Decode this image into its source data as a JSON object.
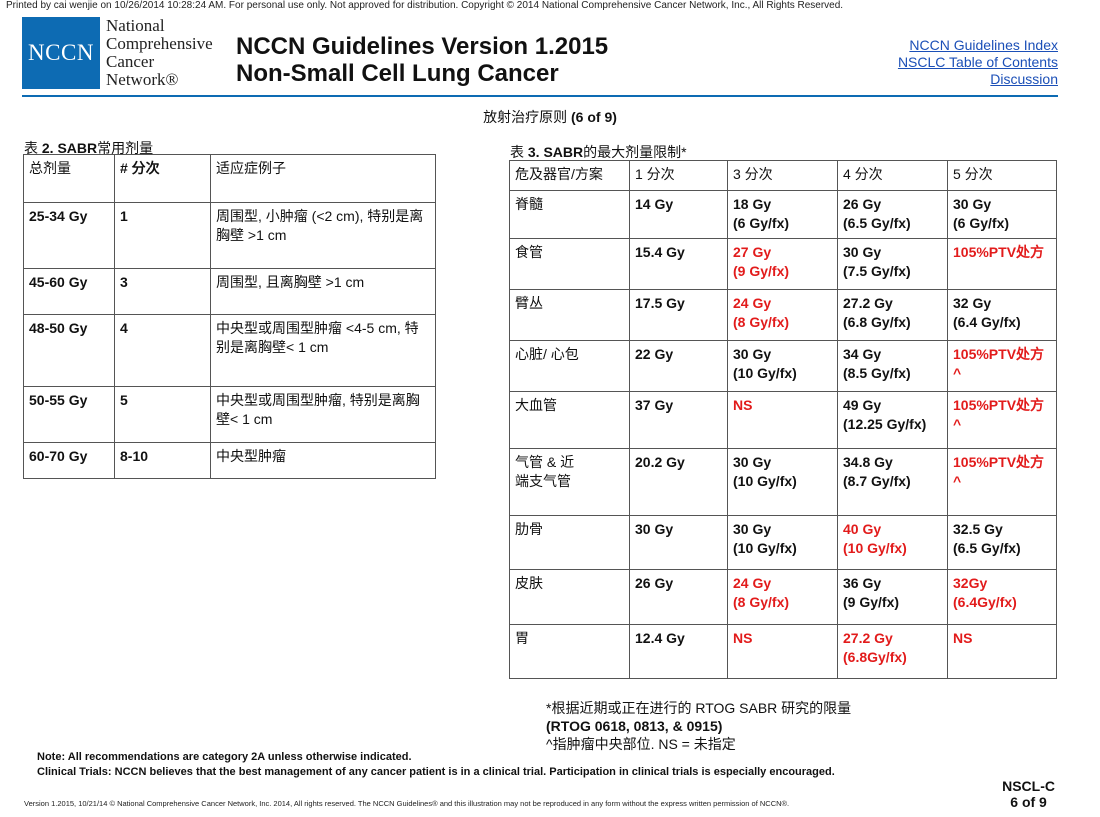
{
  "print_line": "Printed by cai wenjie on 10/26/2014 10:28:24 AM. For personal use only. Not approved for distribution. Copyright © 2014 National Comprehensive Cancer Network, Inc., All Rights Reserved.",
  "logo": {
    "abbr": "NCCN",
    "lines": [
      "National",
      "Comprehensive",
      "Cancer",
      "Network®"
    ]
  },
  "header": {
    "title_line1": "NCCN Guidelines Version 1.2015",
    "title_line2": "Non-Small Cell Lung Cancer"
  },
  "links": {
    "index": "NCCN Guidelines Index",
    "toc": "NSCLC Table of Contents",
    "discussion": "Discussion"
  },
  "subtitle": {
    "text": "放射治疗原则",
    "page": "(6 of 9)"
  },
  "table2": {
    "caption_prefix": "表",
    "caption_bold": "2. SABR",
    "caption_suffix": "常用剂量",
    "headers": [
      "总剂量",
      "# 分次",
      "适应症例子"
    ],
    "rows": [
      [
        "25-34 Gy",
        "1",
        "周围型, 小肿瘤 (<2 cm), 特别是离胸壁 >1 cm"
      ],
      [
        "45-60 Gy",
        "3",
        "周围型, 且离胸壁 >1 cm"
      ],
      [
        "48-50 Gy",
        "4",
        "中央型或周围型肿瘤 <4-5 cm, 特别是离胸壁< 1 cm"
      ],
      [
        "50-55 Gy",
        "5",
        "中央型或周围型肿瘤, 特别是离胸壁< 1 cm"
      ],
      [
        "60-70 Gy",
        "8-10",
        "中央型肿瘤"
      ]
    ]
  },
  "table3": {
    "caption_prefix": "表",
    "caption_bold": "3. SABR",
    "caption_suffix": "的最大剂量限制*",
    "headers": [
      "危及器官/方案",
      "1 分次",
      "3 分次",
      "4 分次",
      "5 分次"
    ],
    "rows": [
      {
        "organ": "脊髓",
        "c1": "14 Gy",
        "c3": "18 Gy\n(6 Gy/fx)",
        "c4": "26 Gy\n(6.5 Gy/fx)",
        "c5": "30 Gy\n(6 Gy/fx)",
        "red": []
      },
      {
        "organ": "食管",
        "c1": "15.4 Gy",
        "c3": "27 Gy\n(9 Gy/fx)",
        "c4": "30 Gy\n(7.5 Gy/fx)",
        "c5": "105%PTV处方",
        "red": [
          "c3",
          "c5"
        ]
      },
      {
        "organ": "臂丛",
        "c1": "17.5 Gy",
        "c3": "24 Gy\n(8 Gy/fx)",
        "c4": "27.2 Gy\n(6.8 Gy/fx)",
        "c5": "32 Gy\n(6.4 Gy/fx)",
        "red": [
          "c3"
        ]
      },
      {
        "organ": "心脏/ 心包",
        "c1": "22 Gy",
        "c3": "30 Gy\n(10 Gy/fx)",
        "c4": "34 Gy\n(8.5 Gy/fx)",
        "c5": "105%PTV处方\n^",
        "red": [
          "c5"
        ]
      },
      {
        "organ": "大血管",
        "c1": "37 Gy",
        "c3": "NS",
        "c4": "49 Gy\n(12.25 Gy/fx)",
        "c5": "105%PTV处方\n^",
        "red": [
          "c3",
          "c5"
        ]
      },
      {
        "organ": "气管 & 近\n端支气管",
        "c1": "20.2 Gy",
        "c3": "30 Gy\n(10 Gy/fx)",
        "c4": "34.8 Gy\n(8.7 Gy/fx)",
        "c5": "105%PTV处方\n^",
        "red": [
          "c5"
        ]
      },
      {
        "organ": "肋骨",
        "c1": "30 Gy",
        "c3": "30 Gy\n(10 Gy/fx)",
        "c4": "40 Gy\n(10 Gy/fx)",
        "c5": "32.5 Gy\n(6.5 Gy/fx)",
        "red": [
          "c4"
        ]
      },
      {
        "organ": "皮肤",
        "c1": "26 Gy",
        "c3": "24 Gy\n(8 Gy/fx)",
        "c4": "36 Gy\n(9 Gy/fx)",
        "c5": "32Gy\n(6.4Gy/fx)",
        "red": [
          "c3",
          "c5"
        ]
      },
      {
        "organ": "胃",
        "c1": "12.4 Gy",
        "c3": "NS",
        "c4": "27.2 Gy\n(6.8Gy/fx)",
        "c5": "NS",
        "red": [
          "c3",
          "c4",
          "c5"
        ]
      }
    ]
  },
  "footnote": {
    "line1": "*根据近期或正在进行的 RTOG SABR 研究的限量",
    "line2": "(RTOG 0618, 0813, & 0915)",
    "line3": "^指肿瘤中央部位. NS = 未指定"
  },
  "notes": {
    "note": "Note:  All recommendations are category 2A unless otherwise indicated.",
    "trials": "Clinical Trials: NCCN believes that the best management of any cancer patient is in a clinical trial. Participation in clinical trials is especially encouraged."
  },
  "page_id": {
    "code": "NSCL-C",
    "page": "6 of 9"
  },
  "copyright": "Version 1.2015, 10/21/14 © National Comprehensive Cancer Network, Inc. 2014, All rights reserved. The NCCN Guidelines® and this illustration may not be reproduced in any form without the express written permission of NCCN®.",
  "colors": {
    "brand_blue": "#0d6bb3",
    "link_blue": "#1b4fb7",
    "highlight_red": "#e21b1b"
  }
}
